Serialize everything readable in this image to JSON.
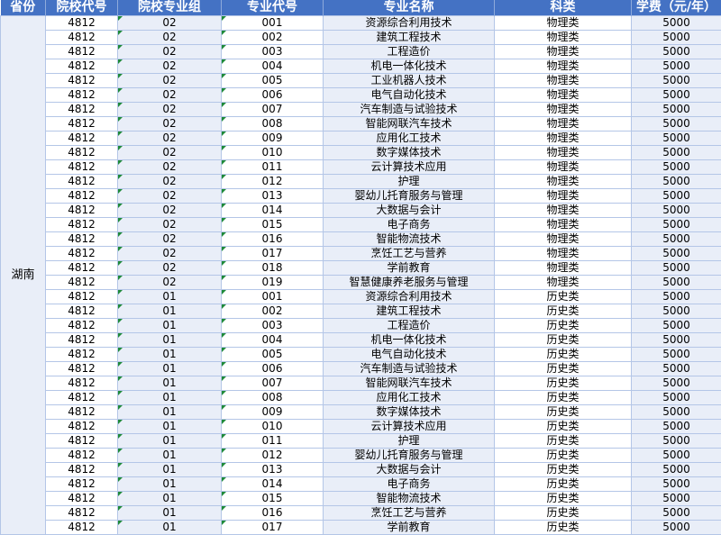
{
  "headers": [
    "省份",
    "院校代号",
    "院校专业组",
    "专业代号",
    "专业名称",
    "科类",
    "学费（元/年）"
  ],
  "province": "湖南",
  "rows": [
    [
      "4812",
      "02",
      "001",
      "资源综合利用技术",
      "物理类",
      "5000"
    ],
    [
      "4812",
      "02",
      "002",
      "建筑工程技术",
      "物理类",
      "5000"
    ],
    [
      "4812",
      "02",
      "003",
      "工程造价",
      "物理类",
      "5000"
    ],
    [
      "4812",
      "02",
      "004",
      "机电一体化技术",
      "物理类",
      "5000"
    ],
    [
      "4812",
      "02",
      "005",
      "工业机器人技术",
      "物理类",
      "5000"
    ],
    [
      "4812",
      "02",
      "006",
      "电气自动化技术",
      "物理类",
      "5000"
    ],
    [
      "4812",
      "02",
      "007",
      "汽车制造与试验技术",
      "物理类",
      "5000"
    ],
    [
      "4812",
      "02",
      "008",
      "智能网联汽车技术",
      "物理类",
      "5000"
    ],
    [
      "4812",
      "02",
      "009",
      "应用化工技术",
      "物理类",
      "5000"
    ],
    [
      "4812",
      "02",
      "010",
      "数字媒体技术",
      "物理类",
      "5000"
    ],
    [
      "4812",
      "02",
      "011",
      "云计算技术应用",
      "物理类",
      "5000"
    ],
    [
      "4812",
      "02",
      "012",
      "护理",
      "物理类",
      "5000"
    ],
    [
      "4812",
      "02",
      "013",
      "婴幼儿托育服务与管理",
      "物理类",
      "5000"
    ],
    [
      "4812",
      "02",
      "014",
      "大数据与会计",
      "物理类",
      "5000"
    ],
    [
      "4812",
      "02",
      "015",
      "电子商务",
      "物理类",
      "5000"
    ],
    [
      "4812",
      "02",
      "016",
      "智能物流技术",
      "物理类",
      "5000"
    ],
    [
      "4812",
      "02",
      "017",
      "烹饪工艺与营养",
      "物理类",
      "5000"
    ],
    [
      "4812",
      "02",
      "018",
      "学前教育",
      "物理类",
      "5000"
    ],
    [
      "4812",
      "02",
      "019",
      "智慧健康养老服务与管理",
      "物理类",
      "5000"
    ],
    [
      "4812",
      "01",
      "001",
      "资源综合利用技术",
      "历史类",
      "5000"
    ],
    [
      "4812",
      "01",
      "002",
      "建筑工程技术",
      "历史类",
      "5000"
    ],
    [
      "4812",
      "01",
      "003",
      "工程造价",
      "历史类",
      "5000"
    ],
    [
      "4812",
      "01",
      "004",
      "机电一体化技术",
      "历史类",
      "5000"
    ],
    [
      "4812",
      "01",
      "005",
      "电气自动化技术",
      "历史类",
      "5000"
    ],
    [
      "4812",
      "01",
      "006",
      "汽车制造与试验技术",
      "历史类",
      "5000"
    ],
    [
      "4812",
      "01",
      "007",
      "智能网联汽车技术",
      "历史类",
      "5000"
    ],
    [
      "4812",
      "01",
      "008",
      "应用化工技术",
      "历史类",
      "5000"
    ],
    [
      "4812",
      "01",
      "009",
      "数字媒体技术",
      "历史类",
      "5000"
    ],
    [
      "4812",
      "01",
      "010",
      "云计算技术应用",
      "历史类",
      "5000"
    ],
    [
      "4812",
      "01",
      "011",
      "护理",
      "历史类",
      "5000"
    ],
    [
      "4812",
      "01",
      "012",
      "婴幼儿托育服务与管理",
      "历史类",
      "5000"
    ],
    [
      "4812",
      "01",
      "013",
      "大数据与会计",
      "历史类",
      "5000"
    ],
    [
      "4812",
      "01",
      "014",
      "电子商务",
      "历史类",
      "5000"
    ],
    [
      "4812",
      "01",
      "015",
      "智能物流技术",
      "历史类",
      "5000"
    ],
    [
      "4812",
      "01",
      "016",
      "烹饪工艺与营养",
      "历史类",
      "5000"
    ],
    [
      "4812",
      "01",
      "017",
      "学前教育",
      "历史类",
      "5000"
    ]
  ]
}
